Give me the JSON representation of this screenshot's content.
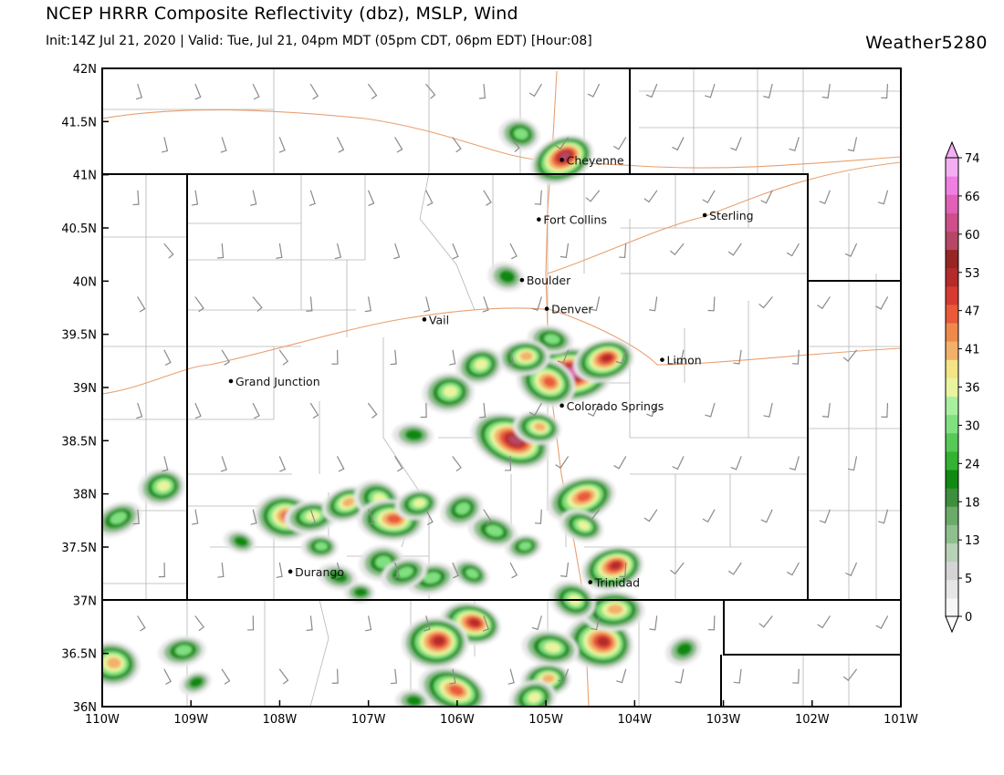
{
  "header": {
    "title": "NCEP HRRR Composite Reflectivity (dbz), MSLP, Wind",
    "subtitle": "Init:14Z Jul 21, 2020 | Valid: Tue, Jul 21, 04pm MDT (05pm CDT, 06pm EDT) [Hour:08]",
    "brand": "Weather5280"
  },
  "map": {
    "lon_range": [
      -110,
      -101
    ],
    "lat_range": [
      36,
      42
    ],
    "lat_labels": [
      "42N",
      "41.5N",
      "41N",
      "40.5N",
      "40N",
      "39.5N",
      "39N",
      "38.5N",
      "38N",
      "37.5N",
      "37N",
      "36.5N",
      "36N"
    ],
    "lon_labels": [
      "110W",
      "109W",
      "108W",
      "107W",
      "106W",
      "105W",
      "104W",
      "103W",
      "102W",
      "101W"
    ],
    "cities": [
      {
        "name": "Cheyenne",
        "lon": -104.82,
        "lat": 41.14
      },
      {
        "name": "Fort Collins",
        "lon": -105.08,
        "lat": 40.58
      },
      {
        "name": "Sterling",
        "lon": -103.21,
        "lat": 40.62
      },
      {
        "name": "Boulder",
        "lon": -105.27,
        "lat": 40.01
      },
      {
        "name": "Denver",
        "lon": -104.99,
        "lat": 39.74
      },
      {
        "name": "Vail",
        "lon": -106.37,
        "lat": 39.64
      },
      {
        "name": "Limon",
        "lon": -103.69,
        "lat": 39.26
      },
      {
        "name": "Grand Junction",
        "lon": -108.55,
        "lat": 39.06
      },
      {
        "name": "Colorado Springs",
        "lon": -104.82,
        "lat": 38.83
      },
      {
        "name": "Durango",
        "lon": -107.88,
        "lat": 37.27
      },
      {
        "name": "Trinidad",
        "lon": -104.5,
        "lat": 37.17
      }
    ],
    "storm_cells": [
      {
        "lon": -104.82,
        "lat": 41.14,
        "peak": 55
      },
      {
        "lon": -105.3,
        "lat": 41.38,
        "peak": 24
      },
      {
        "lon": -104.75,
        "lat": 39.12,
        "peak": 60
      },
      {
        "lon": -104.35,
        "lat": 39.25,
        "peak": 50
      },
      {
        "lon": -105.0,
        "lat": 39.05,
        "peak": 42
      },
      {
        "lon": -104.95,
        "lat": 39.45,
        "peak": 24
      },
      {
        "lon": -105.25,
        "lat": 39.28,
        "peak": 40
      },
      {
        "lon": -105.75,
        "lat": 39.2,
        "peak": 30
      },
      {
        "lon": -105.4,
        "lat": 38.5,
        "peak": 55
      },
      {
        "lon": -105.1,
        "lat": 38.62,
        "peak": 36
      },
      {
        "lon": -106.1,
        "lat": 38.95,
        "peak": 34
      },
      {
        "lon": -104.6,
        "lat": 37.95,
        "peak": 45
      },
      {
        "lon": -104.6,
        "lat": 37.7,
        "peak": 33
      },
      {
        "lon": -107.95,
        "lat": 37.78,
        "peak": 42
      },
      {
        "lon": -107.65,
        "lat": 37.78,
        "peak": 30
      },
      {
        "lon": -107.25,
        "lat": 37.9,
        "peak": 38
      },
      {
        "lon": -106.9,
        "lat": 37.95,
        "peak": 30
      },
      {
        "lon": -106.75,
        "lat": 37.75,
        "peak": 42
      },
      {
        "lon": -106.45,
        "lat": 37.9,
        "peak": 32
      },
      {
        "lon": -105.95,
        "lat": 37.85,
        "peak": 26
      },
      {
        "lon": -105.6,
        "lat": 37.65,
        "peak": 28
      },
      {
        "lon": -107.55,
        "lat": 37.5,
        "peak": 24
      },
      {
        "lon": -109.33,
        "lat": 38.06,
        "peak": 30
      },
      {
        "lon": -109.83,
        "lat": 37.76,
        "peak": 28
      },
      {
        "lon": -105.85,
        "lat": 36.78,
        "peak": 50
      },
      {
        "lon": -106.25,
        "lat": 36.6,
        "peak": 48
      },
      {
        "lon": -106.3,
        "lat": 37.2,
        "peak": 28
      },
      {
        "lon": -105.85,
        "lat": 37.25,
        "peak": 26
      },
      {
        "lon": -104.4,
        "lat": 36.6,
        "peak": 50
      },
      {
        "lon": -104.25,
        "lat": 36.9,
        "peak": 40
      },
      {
        "lon": -104.25,
        "lat": 37.3,
        "peak": 52
      },
      {
        "lon": -104.7,
        "lat": 37.0,
        "peak": 30
      },
      {
        "lon": -104.95,
        "lat": 36.55,
        "peak": 34
      },
      {
        "lon": -105.0,
        "lat": 36.25,
        "peak": 38
      },
      {
        "lon": -105.15,
        "lat": 36.07,
        "peak": 30
      },
      {
        "lon": -106.05,
        "lat": 36.15,
        "peak": 45
      },
      {
        "lon": -106.5,
        "lat": 36.05,
        "peak": 22
      },
      {
        "lon": -106.85,
        "lat": 37.35,
        "peak": 28
      },
      {
        "lon": -106.6,
        "lat": 37.25,
        "peak": 26
      },
      {
        "lon": -108.45,
        "lat": 37.55,
        "peak": 20
      },
      {
        "lon": -109.9,
        "lat": 36.4,
        "peak": 40
      },
      {
        "lon": -109.1,
        "lat": 36.52,
        "peak": 26
      },
      {
        "lon": -108.95,
        "lat": 36.22,
        "peak": 20
      },
      {
        "lon": -105.45,
        "lat": 40.04,
        "peak": 20
      },
      {
        "lon": -106.5,
        "lat": 38.55,
        "peak": 20
      },
      {
        "lon": -105.25,
        "lat": 37.5,
        "peak": 24
      },
      {
        "lon": -103.45,
        "lat": 36.53,
        "peak": 20
      },
      {
        "lon": -107.35,
        "lat": 37.22,
        "peak": 20
      },
      {
        "lon": -107.1,
        "lat": 37.07,
        "peak": 18
      }
    ]
  },
  "legend": {
    "ticks": [
      74,
      66,
      60,
      53,
      47,
      41,
      36,
      30,
      24,
      18,
      13,
      5,
      0
    ],
    "colors": [
      "#f7f7f7",
      "#e6e6e6",
      "#d4d4d4",
      "#b7d2b7",
      "#8fbf8f",
      "#6aab6a",
      "#3d8f3d",
      "#118a11",
      "#33b233",
      "#57c957",
      "#80e080",
      "#a8f0a0",
      "#e9f59e",
      "#f5e486",
      "#f3b06a",
      "#ee8b4c",
      "#ea5a3a",
      "#d73a30",
      "#b52b2b",
      "#982525",
      "#b64766",
      "#cf4f8a",
      "#e160b8",
      "#ef7fe2",
      "#f4aef4"
    ]
  }
}
